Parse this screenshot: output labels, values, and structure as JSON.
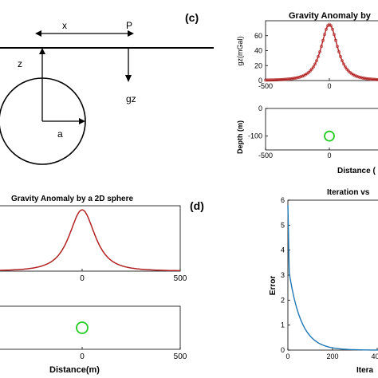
{
  "panels": {
    "c_label": "(c)",
    "d_label": "(d)"
  },
  "schematic": {
    "x_label": "x",
    "p_label": "P",
    "z_label": "z",
    "gz_label": "gz",
    "a_label": "a"
  },
  "colors": {
    "observed": "#b22222",
    "calculated": "#b22222",
    "sphere": "#22cc22",
    "error_curve": "#1f77b4"
  },
  "chart_data": [
    {
      "id": "top_right_anomaly",
      "type": "line",
      "title": "Gravity Anomaly by",
      "ylabel": "gz(mGal)",
      "xlim": [
        -500,
        500
      ],
      "ylim": [
        0,
        80
      ],
      "x_ticks": [
        "-500",
        "0"
      ],
      "y_ticks": [
        "0",
        "20",
        "40",
        "60"
      ],
      "series": [
        {
          "values": "gz = 75 / (1 + (x/100)^2)^(3/2)",
          "x": [
            -500,
            -400,
            -300,
            -200,
            -150,
            -100,
            -50,
            0,
            50,
            100
          ],
          "y": [
            0.6,
            1.1,
            2.4,
            6.7,
            12.8,
            26.5,
            53.7,
            75.0,
            53.7,
            26.5
          ]
        }
      ]
    },
    {
      "id": "top_right_depth",
      "type": "scatter",
      "xlabel": "Distance (",
      "ylabel": "Depth (m)",
      "xlim": [
        -500,
        500
      ],
      "ylim": [
        -150,
        0
      ],
      "x_ticks": [
        "-500",
        "0"
      ],
      "y_ticks": [
        "0",
        "-100"
      ],
      "series": [
        {
          "x": [
            0
          ],
          "y": [
            -100
          ]
        }
      ]
    },
    {
      "id": "bottom_left_anomaly",
      "type": "line",
      "title": "Gravity Anomaly by a 2D sphere",
      "xlim": [
        -500,
        500
      ],
      "x_ticks": [
        "0",
        "500"
      ],
      "series": [
        {
          "x": [
            -500,
            -200,
            -100,
            0,
            100,
            200,
            500
          ],
          "y": [
            0.6,
            6.7,
            26.5,
            75.0,
            26.5,
            6.7,
            0.6
          ]
        }
      ]
    },
    {
      "id": "bottom_left_depth",
      "type": "scatter",
      "xlabel": "Distance(m)",
      "xlim": [
        -500,
        500
      ],
      "x_ticks": [
        "0",
        "500"
      ],
      "series": [
        {
          "x": [
            0
          ],
          "y": [
            -100
          ]
        }
      ]
    },
    {
      "id": "iteration_error",
      "type": "line",
      "title": "Iteration vs",
      "xlabel": "Itera",
      "ylabel": "Error",
      "xlim": [
        0,
        500
      ],
      "ylim": [
        0,
        6
      ],
      "x_ticks": [
        "0",
        "200",
        "400"
      ],
      "y_ticks": [
        "0",
        "1",
        "2",
        "3",
        "4",
        "5",
        "6"
      ],
      "series": [
        {
          "x": [
            0,
            50,
            100,
            150,
            200,
            250,
            300,
            400,
            500
          ],
          "y": [
            5.8,
            1.25,
            0.55,
            0.25,
            0.11,
            0.05,
            0.02,
            0.005,
            0.0
          ]
        }
      ]
    }
  ]
}
